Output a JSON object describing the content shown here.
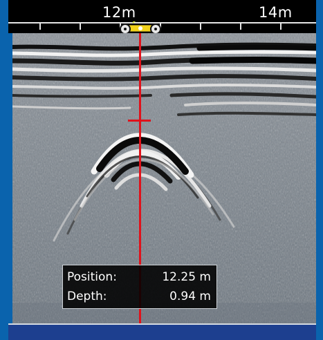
{
  "ruler": {
    "labels": [
      {
        "text": "12m"
      },
      {
        "text": "14m"
      }
    ]
  },
  "readout": {
    "position_label": "Position:",
    "position_value": "12.25 m",
    "depth_label": "Depth:",
    "depth_value": "0.94 m"
  },
  "colors": {
    "background": "#0a63ad",
    "cursor": "#e0121b",
    "cart_body": "#f2d21a"
  },
  "icons": {
    "cart": "gpr-cart-icon"
  }
}
